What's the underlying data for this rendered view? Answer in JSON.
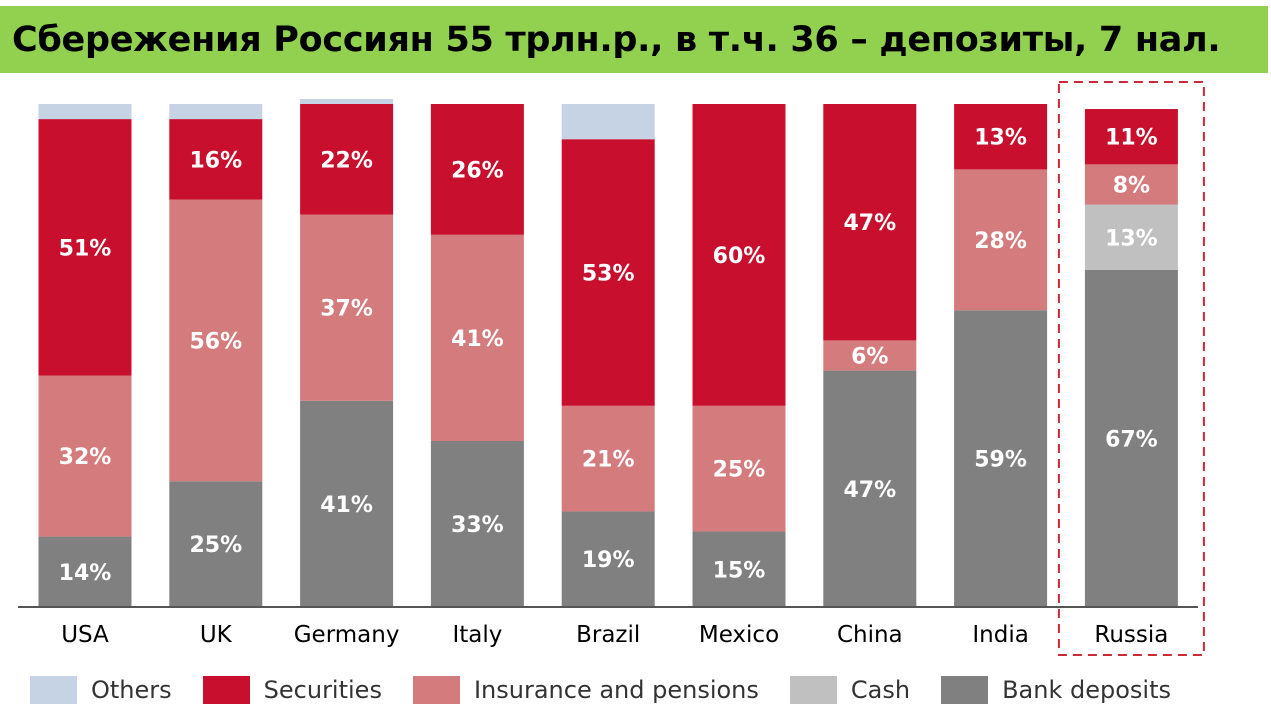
{
  "title": "Сбережения Россиян 55 трлн.р., в т.ч. 36 – депозиты, 7 нал.",
  "chart_data": {
    "type": "bar",
    "stacked": true,
    "orientation": "vertical",
    "ylim": [
      0,
      100
    ],
    "grid": false,
    "legend_position": "bottom",
    "categories": [
      "USA",
      "UK",
      "Germany",
      "Italy",
      "Brazil",
      "Mexico",
      "China",
      "India",
      "Russia"
    ],
    "highlight_category": "Russia",
    "series": [
      {
        "name": "Bank deposits",
        "color": "#808080",
        "values": [
          14,
          25,
          41,
          33,
          19,
          15,
          47,
          59,
          67
        ],
        "labels": [
          "14%",
          "25%",
          "41%",
          "33%",
          "19%",
          "15%",
          "47%",
          "59%",
          "67%"
        ]
      },
      {
        "name": "Cash",
        "color": "#c0c0c0",
        "values": [
          0,
          0,
          0,
          0,
          0,
          0,
          0,
          0,
          13
        ],
        "labels": [
          "",
          "",
          "",
          "",
          "",
          "",
          "",
          "",
          "13%"
        ]
      },
      {
        "name": "Insurance and pensions",
        "color": "#d47b7e",
        "values": [
          32,
          56,
          37,
          41,
          21,
          25,
          6,
          28,
          8
        ],
        "labels": [
          "32%",
          "56%",
          "37%",
          "41%",
          "21%",
          "25%",
          "6%",
          "28%",
          "8%"
        ]
      },
      {
        "name": "Securities",
        "color": "#c8102e",
        "values": [
          51,
          16,
          22,
          26,
          53,
          60,
          47,
          13,
          11
        ],
        "labels": [
          "51%",
          "16%",
          "22%",
          "26%",
          "53%",
          "60%",
          "47%",
          "13%",
          "11%"
        ]
      },
      {
        "name": "Others",
        "color": "#c5d3e5",
        "values": [
          3,
          3,
          1,
          0,
          7,
          0,
          0,
          0,
          0
        ],
        "labels": [
          "",
          "",
          "",
          "",
          "",
          "",
          "",
          "",
          ""
        ]
      }
    ],
    "legend_order": [
      "Others",
      "Securities",
      "Insurance and pensions",
      "Cash",
      "Bank deposits"
    ]
  }
}
